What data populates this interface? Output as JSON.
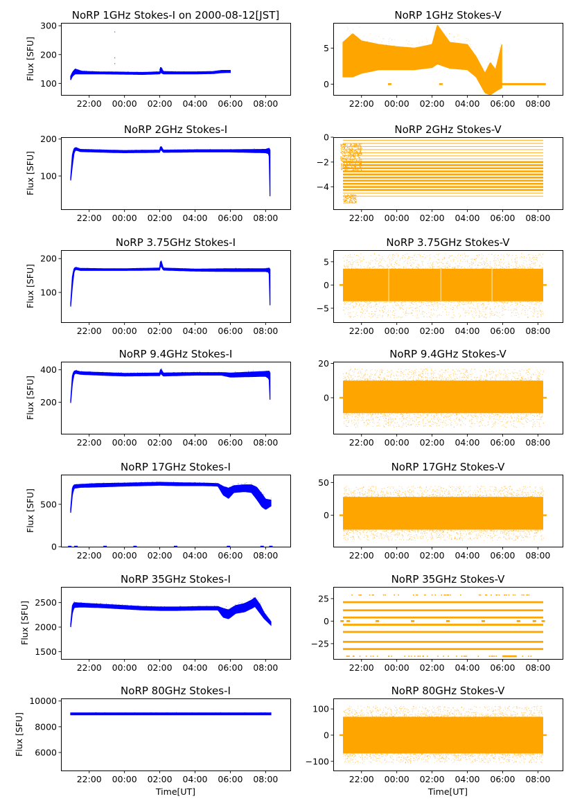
{
  "figure": {
    "colors": {
      "stokes_i": "#0000ff",
      "stokes_v": "#ffa500"
    },
    "time_ticks": [
      "22:00",
      "00:00",
      "02:00",
      "04:00",
      "06:00",
      "08:00"
    ],
    "xlabel": "Time[UT]",
    "ylabel": "Flux [SFU]"
  },
  "chart_data": [
    {
      "type": "line",
      "title": "NoRP 1GHz Stokes-I on 2000-08-12[JST]",
      "ylabel": "Flux [SFU]",
      "xlabel": "",
      "ylim": [
        60,
        310
      ],
      "yticks": [
        "100",
        "200",
        "300"
      ],
      "ytick_values": [
        100,
        200,
        300
      ],
      "x_range_hours": [
        -3.6,
        9.4
      ],
      "grid": false,
      "series": [
        {
          "color": "#0000ff",
          "style": "band",
          "x": [
            -3.05,
            -2.95,
            -2.8,
            -2.4,
            -1.5,
            0,
            1.0,
            2.0,
            2.05,
            2.2,
            3.0,
            4.0,
            5.0,
            5.5,
            6.0
          ],
          "lo": [
            112,
            125,
            133,
            133,
            133,
            132,
            131,
            133,
            138,
            133,
            133,
            133,
            134,
            137,
            138
          ],
          "hi": [
            125,
            138,
            150,
            142,
            140,
            139,
            138,
            140,
            158,
            141,
            140,
            140,
            141,
            145,
            145
          ],
          "outliers": [
            [
              -0.55,
              280
            ],
            [
              -0.55,
              190
            ],
            [
              -0.55,
              170
            ],
            [
              2.0,
              150
            ]
          ]
        }
      ]
    },
    {
      "type": "line",
      "title": "NoRP 1GHz Stokes-V",
      "ylabel": "",
      "xlabel": "",
      "ylim": [
        -1.5,
        8.5
      ],
      "yticks": [
        "0",
        "5"
      ],
      "ytick_values": [
        0,
        5
      ],
      "x_range_hours": [
        -3.6,
        9.4
      ],
      "grid": false,
      "series": [
        {
          "color": "#ffa500",
          "style": "band",
          "x": [
            -3.05,
            -2.5,
            -2.0,
            -1.0,
            0,
            1.0,
            2.0,
            2.3,
            3.0,
            4.0,
            4.5,
            5.0,
            5.3,
            5.6,
            5.95
          ],
          "lo": [
            1.0,
            1.0,
            1.5,
            2.0,
            2.0,
            2.0,
            2.3,
            2.8,
            2.2,
            2.0,
            1.0,
            -1.2,
            -1.5,
            -1.0,
            -0.5
          ],
          "hi": [
            5.8,
            7.0,
            6.0,
            5.5,
            5.2,
            5.0,
            5.5,
            8.2,
            5.8,
            5.5,
            3.8,
            1.5,
            3.0,
            2.0,
            5.5
          ],
          "flat": [
            [
              5.95,
              8.45,
              0
            ]
          ],
          "dashes": [
            [
              -0.4,
              0
            ],
            [
              2.5,
              0
            ]
          ]
        }
      ]
    },
    {
      "type": "line",
      "title": "NoRP 2GHz Stokes-I",
      "ylabel": "Flux [SFU]",
      "xlabel": "",
      "ylim": [
        10,
        205
      ],
      "yticks": [
        "100",
        "200"
      ],
      "ytick_values": [
        100,
        200
      ],
      "x_range_hours": [
        -3.6,
        9.4
      ],
      "grid": false,
      "series": [
        {
          "color": "#0000ff",
          "style": "band",
          "x": [
            -3.05,
            -2.95,
            -2.85,
            -2.75,
            -2.5,
            -1.0,
            0,
            2.0,
            2.05,
            2.2,
            4.0,
            6.0,
            8.0,
            8.2,
            8.25
          ],
          "lo": [
            88,
            130,
            165,
            170,
            166,
            164,
            163,
            164,
            172,
            164,
            165,
            165,
            163,
            160,
            45
          ],
          "hi": [
            95,
            160,
            175,
            177,
            172,
            170,
            169,
            170,
            182,
            170,
            171,
            171,
            172,
            175,
            170
          ]
        }
      ]
    },
    {
      "type": "scatter",
      "title": "NoRP 2GHz Stokes-V",
      "ylabel": "",
      "xlabel": "",
      "ylim": [
        -5.8,
        0
      ],
      "yticks": [
        "0",
        "−2",
        "−4"
      ],
      "ytick_values": [
        0,
        -2,
        -4
      ],
      "x_range_hours": [
        -3.6,
        9.4
      ],
      "grid": false,
      "series": [
        {
          "color": "#ffa500",
          "style": "levels",
          "x_range": [
            -3.05,
            8.3
          ],
          "levels": [
            -0.25,
            -0.5,
            -0.75,
            -1.0,
            -1.25,
            -1.5,
            -1.75,
            -2.0,
            -2.25,
            -2.5,
            -2.75,
            -3.0,
            -3.25,
            -3.5,
            -3.75,
            -4.0,
            -4.25,
            -4.5,
            -4.75
          ],
          "dense_range": [
            -3.2,
            -2.0
          ],
          "early_range": [
            -3.05,
            -2.3,
            -5.3
          ]
        }
      ]
    },
    {
      "type": "line",
      "title": "NoRP 3.75GHz Stokes-I",
      "ylabel": "Flux [SFU]",
      "xlabel": "",
      "ylim": [
        12,
        225
      ],
      "yticks": [
        "100",
        "200"
      ],
      "ytick_values": [
        100,
        200
      ],
      "x_range_hours": [
        -3.6,
        9.4
      ],
      "grid": false,
      "series": [
        {
          "color": "#0000ff",
          "style": "band",
          "x": [
            -3.05,
            -2.95,
            -2.85,
            -2.75,
            -2.5,
            -1.0,
            0,
            2.0,
            2.05,
            2.2,
            4.0,
            6.0,
            8.0,
            8.2,
            8.25
          ],
          "lo": [
            58,
            120,
            164,
            168,
            165,
            165,
            165,
            166,
            180,
            166,
            163,
            162,
            162,
            160,
            62
          ],
          "hi": [
            68,
            150,
            172,
            174,
            171,
            170,
            170,
            172,
            198,
            172,
            169,
            170,
            170,
            172,
            168
          ]
        }
      ]
    },
    {
      "type": "scatter",
      "title": "NoRP 3.75GHz Stokes-V",
      "ylabel": "",
      "xlabel": "",
      "ylim": [
        -8,
        7.5
      ],
      "yticks": [
        "5",
        "0",
        "−5"
      ],
      "ytick_values": [
        5,
        0,
        -5
      ],
      "x_range_hours": [
        -3.6,
        9.4
      ],
      "grid": false,
      "series": [
        {
          "color": "#ffa500",
          "style": "noise",
          "x_range": [
            -3.05,
            8.3
          ],
          "core": [
            -3.5,
            3.5
          ],
          "outer": [
            -7.0,
            6.8
          ],
          "center": 0,
          "gaps": [
            -0.45,
            2.5,
            5.4
          ]
        }
      ]
    },
    {
      "type": "line",
      "title": "NoRP 9.4GHz Stokes-I",
      "ylabel": "Flux [SFU]",
      "xlabel": "",
      "ylim": [
        5,
        450
      ],
      "yticks": [
        "200",
        "400"
      ],
      "ytick_values": [
        200,
        400
      ],
      "x_range_hours": [
        -3.6,
        9.4
      ],
      "grid": false,
      "series": [
        {
          "color": "#0000ff",
          "style": "band",
          "x": [
            -3.05,
            -2.95,
            -2.85,
            -2.75,
            -2.5,
            -1.0,
            0,
            2.0,
            2.05,
            2.2,
            4.0,
            5.5,
            6.0,
            8.0,
            8.2,
            8.25
          ],
          "lo": [
            195,
            320,
            375,
            378,
            372,
            365,
            362,
            364,
            378,
            362,
            367,
            367,
            355,
            360,
            345,
            215
          ],
          "hi": [
            210,
            370,
            392,
            395,
            388,
            382,
            378,
            380,
            408,
            380,
            383,
            383,
            380,
            390,
            392,
            380
          ]
        }
      ]
    },
    {
      "type": "scatter",
      "title": "NoRP 9.4GHz Stokes-V",
      "ylabel": "",
      "xlabel": "",
      "ylim": [
        -21,
        21
      ],
      "yticks": [
        "20",
        "0"
      ],
      "ytick_values": [
        20,
        0
      ],
      "x_range_hours": [
        -3.6,
        9.4
      ],
      "grid": false,
      "series": [
        {
          "color": "#ffa500",
          "style": "noise",
          "x_range": [
            -3.05,
            8.3
          ],
          "core": [
            -9,
            10
          ],
          "outer": [
            -17,
            17
          ],
          "center": 0,
          "gaps": []
        }
      ]
    },
    {
      "type": "line",
      "title": "NoRP 17GHz Stokes-I",
      "ylabel": "Flux [SFU]",
      "xlabel": "",
      "ylim": [
        0,
        850
      ],
      "yticks": [
        "0",
        "500"
      ],
      "ytick_values": [
        0,
        500
      ],
      "x_range_hours": [
        -3.6,
        9.4
      ],
      "grid": false,
      "series": [
        {
          "color": "#0000ff",
          "style": "band",
          "x": [
            -3.05,
            -2.95,
            -2.85,
            -2.5,
            -1.5,
            0,
            1.0,
            2.0,
            3.0,
            4.5,
            5.3,
            5.6,
            5.9,
            6.2,
            6.8,
            7.2,
            7.5,
            7.8,
            8.0,
            8.3
          ],
          "lo": [
            400,
            620,
            690,
            700,
            705,
            715,
            720,
            725,
            720,
            720,
            715,
            610,
            570,
            640,
            650,
            640,
            560,
            470,
            440,
            480
          ],
          "hi": [
            450,
            700,
            730,
            735,
            745,
            750,
            755,
            760,
            755,
            750,
            745,
            710,
            690,
            720,
            730,
            730,
            700,
            620,
            560,
            550
          ],
          "dashes": [
            [
              -3.1,
              0
            ],
            [
              -2.75,
              0
            ],
            [
              -1.1,
              0
            ],
            [
              0.6,
              0
            ],
            [
              2.9,
              0
            ],
            [
              5.9,
              0
            ],
            [
              7.8,
              0
            ],
            [
              8.3,
              0
            ]
          ]
        }
      ]
    },
    {
      "type": "scatter",
      "title": "NoRP 17GHz Stokes-V",
      "ylabel": "",
      "xlabel": "",
      "ylim": [
        -48,
        62
      ],
      "yticks": [
        "50",
        "0"
      ],
      "ytick_values": [
        50,
        0
      ],
      "x_range_hours": [
        -3.6,
        9.4
      ],
      "grid": false,
      "series": [
        {
          "color": "#ffa500",
          "style": "noise",
          "x_range": [
            -3.05,
            8.3
          ],
          "core": [
            -22,
            28
          ],
          "outer": [
            -38,
            45
          ],
          "center": 0,
          "gaps": []
        }
      ]
    },
    {
      "type": "line",
      "title": "NoRP 35GHz Stokes-I",
      "ylabel": "Flux [SFU]",
      "xlabel": "",
      "ylim": [
        1350,
        2820
      ],
      "yticks": [
        "1500",
        "2000",
        "2500"
      ],
      "ytick_values": [
        1500,
        2000,
        2500
      ],
      "x_range_hours": [
        -3.6,
        9.4
      ],
      "grid": false,
      "series": [
        {
          "color": "#0000ff",
          "style": "band",
          "x": [
            -3.05,
            -2.95,
            -2.85,
            -2.5,
            -1.5,
            0,
            1.0,
            2.0,
            3.0,
            4.5,
            5.3,
            5.6,
            5.9,
            6.3,
            6.8,
            7.2,
            7.4,
            7.7,
            7.9,
            8.3
          ],
          "lo": [
            2000,
            2300,
            2400,
            2410,
            2400,
            2370,
            2350,
            2340,
            2340,
            2350,
            2350,
            2200,
            2170,
            2280,
            2310,
            2380,
            2420,
            2280,
            2180,
            2040
          ],
          "hi": [
            2060,
            2450,
            2500,
            2490,
            2470,
            2440,
            2420,
            2410,
            2410,
            2420,
            2420,
            2380,
            2350,
            2440,
            2480,
            2550,
            2600,
            2450,
            2300,
            2110
          ]
        }
      ]
    },
    {
      "type": "scatter",
      "title": "NoRP 35GHz Stokes-V",
      "ylabel": "",
      "xlabel": "",
      "ylim": [
        -42,
        38
      ],
      "yticks": [
        "25",
        "0",
        "−25"
      ],
      "ytick_values": [
        25,
        0,
        -25
      ],
      "x_range_hours": [
        -3.6,
        9.4
      ],
      "grid": false,
      "series": [
        {
          "color": "#ffa500",
          "style": "levels35",
          "x_range": [
            -3.05,
            8.3
          ],
          "levels": [
            21,
            12,
            4,
            -4,
            -12,
            -23,
            -31
          ],
          "sparse_levels": [
            29,
            -39
          ],
          "dashes": [
            [
              -3.1,
              0
            ],
            [
              -2.75,
              0
            ],
            [
              -1.1,
              0
            ],
            [
              0.9,
              0
            ],
            [
              2.9,
              0
            ],
            [
              4.9,
              0
            ],
            [
              6.9,
              0
            ],
            [
              7.8,
              0
            ],
            [
              8.3,
              0
            ]
          ]
        }
      ]
    },
    {
      "type": "line",
      "title": "NoRP 80GHz Stokes-I",
      "ylabel": "Flux [SFU]",
      "xlabel": "Time[UT]",
      "ylim": [
        4600,
        10200
      ],
      "yticks": [
        "6000",
        "8000",
        "10000"
      ],
      "ytick_values": [
        6000,
        8000,
        10000
      ],
      "x_range_hours": [
        -3.6,
        9.4
      ],
      "grid": false,
      "series": [
        {
          "color": "#0000ff",
          "style": "band",
          "x": [
            -3.05,
            8.3
          ],
          "lo": [
            8930,
            8930
          ],
          "hi": [
            9080,
            9080
          ]
        }
      ]
    },
    {
      "type": "scatter",
      "title": "NoRP 80GHz Stokes-V",
      "ylabel": "",
      "xlabel": "Time[UT]",
      "ylim": [
        -135,
        140
      ],
      "yticks": [
        "100",
        "0",
        "−100"
      ],
      "ytick_values": [
        100,
        0,
        -100
      ],
      "x_range_hours": [
        -3.6,
        9.4
      ],
      "grid": false,
      "series": [
        {
          "color": "#ffa500",
          "style": "noise",
          "x_range": [
            -3.05,
            8.3
          ],
          "core": [
            -70,
            70
          ],
          "outer": [
            -105,
            112
          ],
          "center": 0,
          "gaps": []
        }
      ]
    }
  ]
}
